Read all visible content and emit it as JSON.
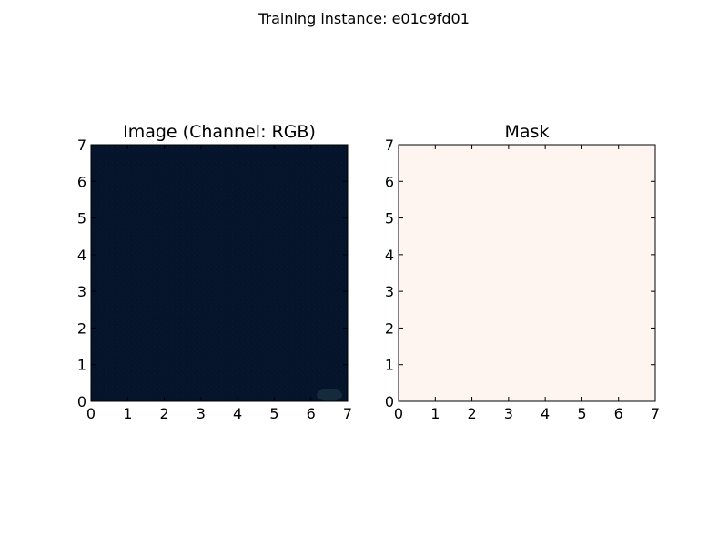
{
  "suptitle": "Training instance: e01c9fd01",
  "chart_data": [
    {
      "type": "heatmap",
      "title": "Image (Channel: RGB)",
      "xlim": [
        0,
        7
      ],
      "ylim": [
        0,
        7
      ],
      "xticks": [
        "0",
        "1",
        "2",
        "3",
        "4",
        "5",
        "6",
        "7"
      ],
      "yticks": [
        "0",
        "1",
        "2",
        "3",
        "4",
        "5",
        "6",
        "7"
      ],
      "fill_color": "#05142a",
      "grid": false
    },
    {
      "type": "heatmap",
      "title": "Mask",
      "xlim": [
        0,
        7
      ],
      "ylim": [
        0,
        7
      ],
      "xticks": [
        "0",
        "1",
        "2",
        "3",
        "4",
        "5",
        "6",
        "7"
      ],
      "yticks": [
        "0",
        "1",
        "2",
        "3",
        "4",
        "5",
        "6",
        "7"
      ],
      "fill_color": "#fff5f0",
      "grid": false
    }
  ]
}
